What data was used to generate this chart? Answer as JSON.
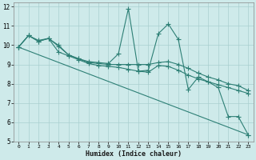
{
  "xlabel": "Humidex (Indice chaleur)",
  "bg_color": "#ceeaea",
  "line_color": "#2d7f75",
  "grid_color": "#aacfcf",
  "xlim": [
    -0.5,
    23.5
  ],
  "ylim": [
    5,
    12.2
  ],
  "yticks": [
    5,
    6,
    7,
    8,
    9,
    10,
    11,
    12
  ],
  "xticks": [
    0,
    1,
    2,
    3,
    4,
    5,
    6,
    7,
    8,
    9,
    10,
    11,
    12,
    13,
    14,
    15,
    16,
    17,
    18,
    19,
    20,
    21,
    22,
    23
  ],
  "series": [
    {
      "x": [
        0,
        1,
        2,
        3,
        4,
        5,
        6,
        7,
        8,
        9,
        10,
        11,
        12,
        13,
        14,
        15,
        16,
        17,
        18,
        19,
        20,
        21,
        22,
        23
      ],
      "y": [
        9.9,
        10.5,
        10.25,
        10.35,
        9.95,
        9.5,
        9.3,
        9.15,
        9.1,
        9.05,
        9.55,
        11.9,
        8.65,
        8.7,
        10.6,
        11.1,
        10.3,
        7.7,
        8.35,
        8.1,
        7.8,
        6.3,
        6.3,
        5.35
      ]
    },
    {
      "x": [
        0,
        1,
        2,
        3,
        4,
        5,
        6,
        7,
        8,
        9,
        10,
        11,
        12,
        13,
        14,
        15,
        16,
        17,
        18,
        19,
        20,
        21,
        22,
        23
      ],
      "y": [
        9.9,
        10.5,
        10.2,
        10.35,
        10.0,
        9.5,
        9.3,
        9.1,
        9.05,
        9.0,
        9.0,
        9.0,
        9.0,
        9.0,
        9.1,
        9.15,
        9.0,
        8.8,
        8.55,
        8.35,
        8.2,
        8.0,
        7.9,
        7.65
      ]
    },
    {
      "x": [
        0,
        1,
        2,
        3,
        4,
        5,
        6,
        7,
        8,
        9,
        10,
        11,
        12,
        13,
        14,
        15,
        16,
        17,
        18,
        19,
        20,
        21,
        22,
        23
      ],
      "y": [
        9.9,
        10.5,
        10.2,
        10.35,
        9.65,
        9.45,
        9.25,
        9.05,
        8.95,
        8.9,
        8.85,
        8.75,
        8.65,
        8.6,
        8.95,
        8.9,
        8.7,
        8.45,
        8.25,
        8.1,
        7.95,
        7.8,
        7.65,
        7.5
      ]
    },
    {
      "x": [
        0,
        23
      ],
      "y": [
        9.9,
        5.35
      ]
    }
  ]
}
